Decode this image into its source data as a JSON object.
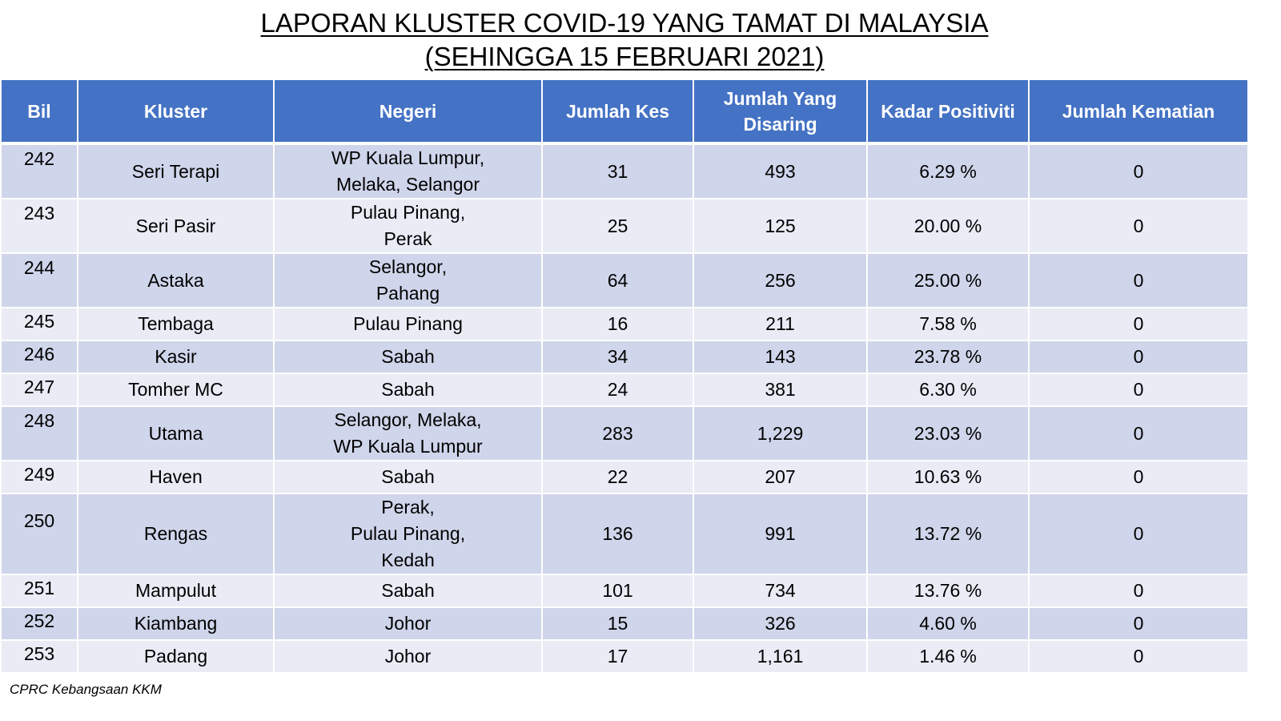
{
  "title": {
    "line1": "LAPORAN KLUSTER COVID-19 YANG TAMAT DI MALAYSIA",
    "line2": "(SEHINGGA 15 FEBRUARI 2021)"
  },
  "table": {
    "headers": [
      "Bil",
      "Kluster",
      "Negeri",
      "Jumlah Kes",
      "Jumlah Yang Disaring",
      "Kadar Positiviti",
      "Jumlah Kematian"
    ],
    "rows": [
      {
        "bil": "242",
        "kluster": "Seri Terapi",
        "negeri": [
          "WP Kuala Lumpur,",
          "Melaka, Selangor"
        ],
        "kes": "31",
        "disaring": "493",
        "positiviti": "6.29 %",
        "kematian": "0"
      },
      {
        "bil": "243",
        "kluster": "Seri Pasir",
        "negeri": [
          "Pulau Pinang,",
          "Perak"
        ],
        "kes": "25",
        "disaring": "125",
        "positiviti": "20.00 %",
        "kematian": "0"
      },
      {
        "bil": "244",
        "kluster": "Astaka",
        "negeri": [
          "Selangor,",
          "Pahang"
        ],
        "kes": "64",
        "disaring": "256",
        "positiviti": "25.00 %",
        "kematian": "0"
      },
      {
        "bil": "245",
        "kluster": "Tembaga",
        "negeri": [
          "Pulau Pinang"
        ],
        "kes": "16",
        "disaring": "211",
        "positiviti": "7.58 %",
        "kematian": "0"
      },
      {
        "bil": "246",
        "kluster": "Kasir",
        "negeri": [
          "Sabah"
        ],
        "kes": "34",
        "disaring": "143",
        "positiviti": "23.78 %",
        "kematian": "0"
      },
      {
        "bil": "247",
        "kluster": "Tomher MC",
        "negeri": [
          "Sabah"
        ],
        "kes": "24",
        "disaring": "381",
        "positiviti": "6.30 %",
        "kematian": "0"
      },
      {
        "bil": "248",
        "kluster": "Utama",
        "negeri": [
          "Selangor, Melaka,",
          "WP Kuala Lumpur"
        ],
        "kes": "283",
        "disaring": "1,229",
        "positiviti": "23.03 %",
        "kematian": "0"
      },
      {
        "bil": "249",
        "kluster": "Haven",
        "negeri": [
          "Sabah"
        ],
        "kes": "22",
        "disaring": "207",
        "positiviti": "10.63 %",
        "kematian": "0"
      },
      {
        "bil": "250",
        "kluster": "Rengas",
        "negeri": [
          "Perak,",
          "Pulau Pinang,",
          "Kedah"
        ],
        "kes": "136",
        "disaring": "991",
        "positiviti": "13.72 %",
        "kematian": "0"
      },
      {
        "bil": "251",
        "kluster": "Mampulut",
        "negeri": [
          "Sabah"
        ],
        "kes": "101",
        "disaring": "734",
        "positiviti": "13.76 %",
        "kematian": "0"
      },
      {
        "bil": "252",
        "kluster": "Kiambang",
        "negeri": [
          "Johor"
        ],
        "kes": "15",
        "disaring": "326",
        "positiviti": "4.60 %",
        "kematian": "0"
      },
      {
        "bil": "253",
        "kluster": "Padang",
        "negeri": [
          "Johor"
        ],
        "kes": "17",
        "disaring": "1,161",
        "positiviti": "1.46 %",
        "kematian": "0"
      }
    ]
  },
  "source": "CPRC Kebangsaan KKM"
}
